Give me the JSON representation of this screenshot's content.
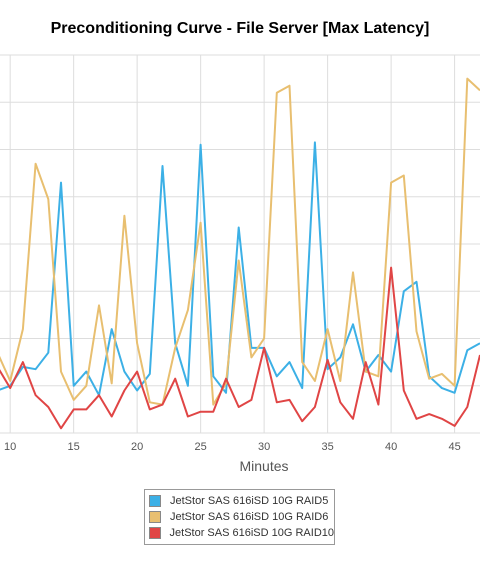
{
  "chart_data": {
    "type": "line",
    "title": "Preconditioning Curve - File Server [Max Latency]",
    "xlabel": "Minutes",
    "ylabel": "",
    "xlim": [
      9.2,
      47.0
    ],
    "ylim": [
      0,
      8
    ],
    "grid": true,
    "legend_position": "bottom",
    "x_ticks": [
      10,
      15,
      20,
      25,
      30,
      35,
      40,
      45
    ],
    "x": [
      9,
      10,
      11,
      12,
      13,
      14,
      15,
      16,
      17,
      18,
      19,
      20,
      21,
      22,
      23,
      24,
      25,
      26,
      27,
      28,
      29,
      30,
      31,
      32,
      33,
      34,
      35,
      36,
      37,
      38,
      39,
      40,
      41,
      42,
      43,
      44,
      45,
      46,
      47
    ],
    "series": [
      {
        "name": "JetStor SAS 616iSD 10G RAID5",
        "color": "#3cb0e6",
        "values": [
          0.9,
          1.0,
          1.4,
          1.35,
          1.7,
          5.3,
          1.0,
          1.3,
          0.8,
          2.2,
          1.3,
          0.9,
          1.25,
          5.65,
          1.9,
          1.0,
          6.1,
          1.2,
          0.85,
          4.35,
          1.8,
          1.8,
          1.2,
          1.5,
          0.95,
          6.15,
          1.35,
          1.6,
          2.3,
          1.3,
          1.65,
          1.3,
          3.0,
          3.2,
          1.2,
          0.95,
          0.85,
          1.75,
          1.9
        ]
      },
      {
        "name": "JetStor SAS 616iSD 10G RAID6",
        "color": "#e8bf70",
        "values": [
          1.7,
          1.1,
          2.2,
          5.7,
          4.95,
          1.3,
          0.7,
          1.0,
          2.7,
          1.05,
          4.6,
          1.9,
          0.65,
          0.6,
          1.8,
          2.6,
          4.45,
          0.6,
          1.05,
          3.65,
          1.6,
          2.0,
          7.2,
          7.35,
          1.5,
          1.1,
          2.2,
          1.1,
          3.4,
          1.3,
          1.2,
          5.3,
          5.45,
          2.15,
          1.15,
          1.25,
          1.0,
          7.5,
          7.25
        ]
      },
      {
        "name": "JetStor SAS 616iSD 10G RAID10",
        "color": "#e04545",
        "values": [
          1.4,
          0.95,
          1.5,
          0.8,
          0.55,
          0.1,
          0.5,
          0.5,
          0.8,
          0.35,
          0.9,
          1.3,
          0.5,
          0.6,
          1.15,
          0.35,
          0.45,
          0.45,
          1.15,
          0.55,
          0.7,
          1.8,
          0.65,
          0.7,
          0.25,
          0.55,
          1.55,
          0.65,
          0.3,
          1.5,
          0.6,
          3.5,
          0.9,
          0.3,
          0.4,
          0.3,
          0.15,
          0.55,
          1.65
        ]
      }
    ]
  }
}
